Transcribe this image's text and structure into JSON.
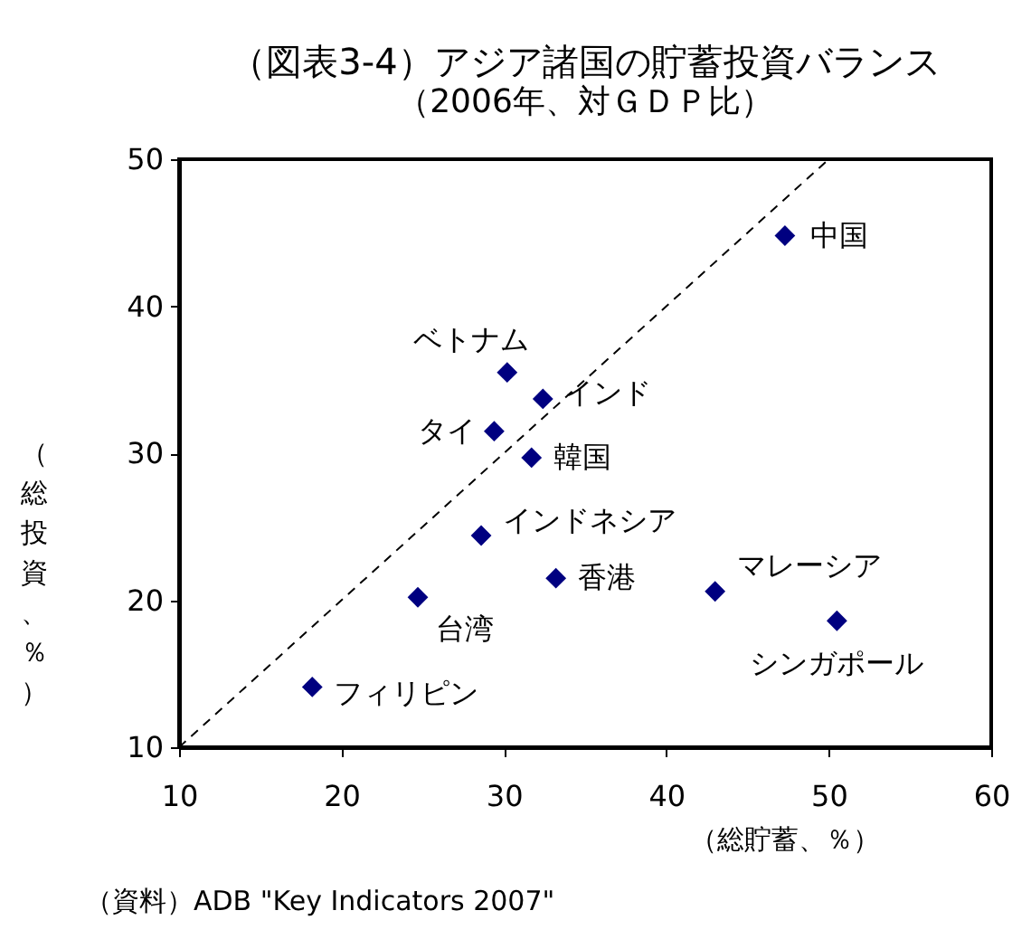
{
  "chart_data": {
    "type": "scatter",
    "title": "（図表3-4）アジア諸国の貯蓄投資バランス",
    "subtitle": "（2006年、対ＧＤＰ比）",
    "xlabel": "（総貯蓄、％）",
    "ylabel": "（総投資、％）",
    "xlim": [
      10,
      60
    ],
    "xticks": [
      10,
      20,
      30,
      40,
      50,
      60
    ],
    "ylim": [
      10,
      50
    ],
    "yticks": [
      10,
      20,
      30,
      40,
      50
    ],
    "grid": false,
    "marker": "diamond",
    "annotations": [
      "（資料）ADB \"Key Indicators 2007\""
    ],
    "series": [
      {
        "name": "中国",
        "color": "#000080",
        "x": [
          47.3
        ],
        "values": [
          44.8
        ]
      },
      {
        "name": "ベトナム",
        "color": "#000080",
        "x": [
          30.2
        ],
        "values": [
          35.5
        ]
      },
      {
        "name": "インド",
        "color": "#000080",
        "x": [
          32.4
        ],
        "values": [
          33.7
        ]
      },
      {
        "name": "タイ",
        "color": "#000080",
        "x": [
          29.4
        ],
        "values": [
          31.5
        ]
      },
      {
        "name": "韓国",
        "color": "#000080",
        "x": [
          31.7
        ],
        "values": [
          29.7
        ]
      },
      {
        "name": "インドネシア",
        "color": "#000080",
        "x": [
          28.6
        ],
        "values": [
          24.4
        ]
      },
      {
        "name": "香港",
        "color": "#000080",
        "x": [
          33.2
        ],
        "values": [
          21.5
        ]
      },
      {
        "name": "マレーシア",
        "color": "#000080",
        "x": [
          43.0
        ],
        "values": [
          20.6
        ]
      },
      {
        "name": "台湾",
        "color": "#000080",
        "x": [
          24.7
        ],
        "values": [
          20.2
        ]
      },
      {
        "name": "シンガポール",
        "color": "#000080",
        "x": [
          50.5
        ],
        "values": [
          18.6
        ]
      },
      {
        "name": "フィリピン",
        "color": "#000080",
        "x": [
          18.2
        ],
        "values": [
          14.1
        ]
      },
      {
        "type": "line",
        "marker": "none",
        "color": "#000000",
        "line_style": "dashed",
        "x": [
          10,
          50
        ],
        "values": [
          10,
          50
        ]
      }
    ]
  }
}
